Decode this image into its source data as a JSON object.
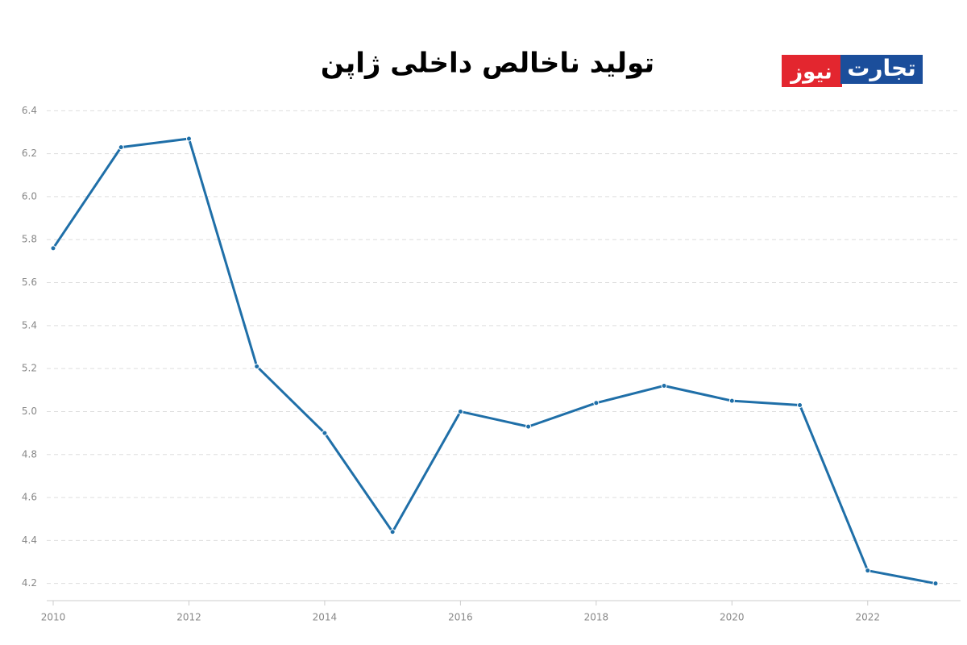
{
  "chart_data": {
    "type": "line",
    "title": "تولید ناخالص داخلی ژاپن",
    "x": [
      2010,
      2011,
      2012,
      2013,
      2014,
      2015,
      2016,
      2017,
      2018,
      2019,
      2020,
      2021,
      2022,
      2023
    ],
    "series": [
      {
        "color": "#1f6fa8",
        "values": [
          5.76,
          6.23,
          6.27,
          5.21,
          4.9,
          4.44,
          5.0,
          4.93,
          5.04,
          5.12,
          5.05,
          5.03,
          4.26,
          4.2
        ]
      }
    ],
    "xlim": [
      2010,
      2023
    ],
    "xticks": [
      2010,
      2012,
      2014,
      2016,
      2018,
      2020,
      2022
    ],
    "ylim": [
      4.12,
      6.45
    ],
    "yticks": [
      4.2,
      4.4,
      4.6,
      4.8,
      {
        "value": 5,
        "label": "5.0"
      },
      5.2,
      5.4,
      5.6,
      5.8,
      {
        "value": 6,
        "label": "6.0"
      },
      6.2,
      6.4
    ],
    "grid": true
  },
  "logo": [
    "تجارت",
    "نیوز"
  ]
}
